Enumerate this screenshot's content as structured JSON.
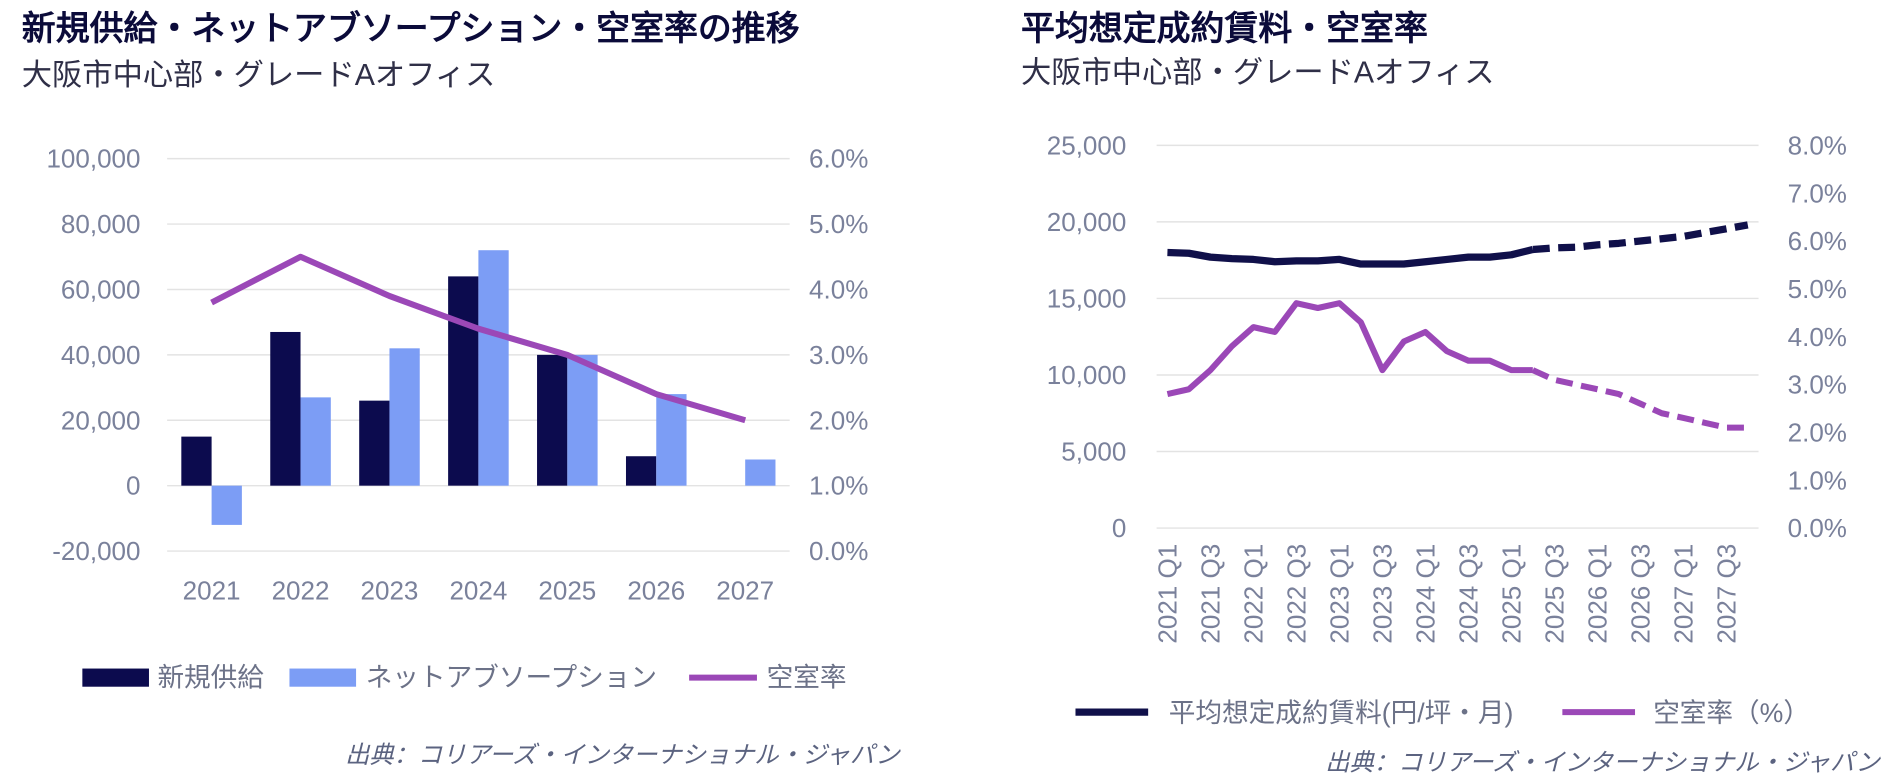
{
  "chart_data": [
    {
      "type": "bar",
      "title": "新規供給・ネットアブソープション・空室率の推移",
      "subtitle": "大阪市中心部・グレードAオフィス",
      "categories": [
        "2021",
        "2022",
        "2023",
        "2024",
        "2025",
        "2026",
        "2027"
      ],
      "series": [
        {
          "name": "新規供給",
          "type": "bar",
          "axis": "left",
          "color": "#0c0b4e",
          "values": [
            15000,
            47000,
            26000,
            64000,
            40000,
            9000,
            0
          ]
        },
        {
          "name": "ネットアブソープション",
          "type": "bar",
          "axis": "left",
          "color": "#7c9df5",
          "values": [
            -12000,
            27000,
            42000,
            72000,
            40000,
            28000,
            8000
          ]
        },
        {
          "name": "空室率",
          "type": "line",
          "axis": "right",
          "color": "#9b48b7",
          "values": [
            3.8,
            4.5,
            3.9,
            3.4,
            3.0,
            2.4,
            2.0
          ]
        }
      ],
      "ylim": [
        -20000,
        100000
      ],
      "y_ticks": [
        -20000,
        0,
        20000,
        40000,
        60000,
        80000,
        100000
      ],
      "y_tick_labels": [
        "-20,000",
        "0",
        "20,000",
        "40,000",
        "60,000",
        "80,000",
        "100,000"
      ],
      "y2lim": [
        0,
        6
      ],
      "y2_ticks": [
        0,
        1,
        2,
        3,
        4,
        5,
        6
      ],
      "y2_tick_labels": [
        "0.0%",
        "1.0%",
        "2.0%",
        "3.0%",
        "4.0%",
        "5.0%",
        "6.0%"
      ],
      "grid": true,
      "legend": "bottom",
      "source": "出典：コリアーズ・インターナショナル・ジャパン"
    },
    {
      "type": "line",
      "title": "平均想定成約賃料・空室率",
      "subtitle": "大阪市中心部・グレードAオフィス",
      "categories": [
        "2021 Q1",
        "",
        "2021 Q3",
        "",
        "2022 Q1",
        "",
        "2022 Q3",
        "",
        "2023 Q1",
        "",
        "2023 Q3",
        "",
        "2024 Q1",
        "",
        "2024 Q3",
        "",
        "2025 Q1",
        "",
        "2025 Q3",
        "",
        "2026 Q1",
        "",
        "2026 Q3",
        "",
        "2027 Q1",
        "",
        "2027 Q3",
        ""
      ],
      "series": [
        {
          "name": "平均想定成約賃料(円/坪・月)",
          "type": "line",
          "axis": "left",
          "color": "#10104a",
          "values": [
            18000,
            17950,
            17700,
            17600,
            17550,
            17400,
            17450,
            17450,
            17550,
            17250,
            17250,
            17250,
            17400,
            17550,
            17700,
            17700,
            17850,
            18200,
            null,
            null,
            null,
            null,
            null,
            null,
            null,
            null,
            null,
            null
          ],
          "forecast_values": [
            null,
            null,
            null,
            null,
            null,
            null,
            null,
            null,
            null,
            null,
            null,
            null,
            null,
            null,
            null,
            null,
            null,
            18200,
            18300,
            18350,
            18500,
            18600,
            18750,
            18900,
            19050,
            19300,
            19550,
            19800
          ]
        },
        {
          "name": "空室率（%）",
          "type": "line",
          "axis": "right",
          "color": "#9b48b7",
          "values": [
            2.8,
            2.9,
            3.3,
            3.8,
            4.2,
            4.1,
            4.7,
            4.6,
            4.7,
            4.3,
            3.3,
            3.9,
            4.1,
            3.7,
            3.5,
            3.5,
            3.3,
            3.3,
            null,
            null,
            null,
            null,
            null,
            null,
            null,
            null,
            null,
            null
          ],
          "forecast_values": [
            null,
            null,
            null,
            null,
            null,
            null,
            null,
            null,
            null,
            null,
            null,
            null,
            null,
            null,
            null,
            null,
            null,
            3.3,
            3.1,
            3.0,
            2.9,
            2.8,
            2.6,
            2.4,
            2.3,
            2.2,
            2.1,
            2.1
          ]
        }
      ],
      "ylim": [
        0,
        25000
      ],
      "y_ticks": [
        0,
        5000,
        10000,
        15000,
        20000,
        25000
      ],
      "y_tick_labels": [
        "0",
        "5,000",
        "10,000",
        "15,000",
        "20,000",
        "25,000"
      ],
      "y2lim": [
        0,
        8
      ],
      "y2_ticks": [
        0,
        1,
        2,
        3,
        4,
        5,
        6,
        7,
        8
      ],
      "y2_tick_labels": [
        "0.0%",
        "1.0%",
        "2.0%",
        "3.0%",
        "4.0%",
        "5.0%",
        "6.0%",
        "7.0%",
        "8.0%"
      ],
      "grid": true,
      "legend": "bottom",
      "source": "出典：コリアーズ・インターナショナル・ジャパン"
    }
  ]
}
